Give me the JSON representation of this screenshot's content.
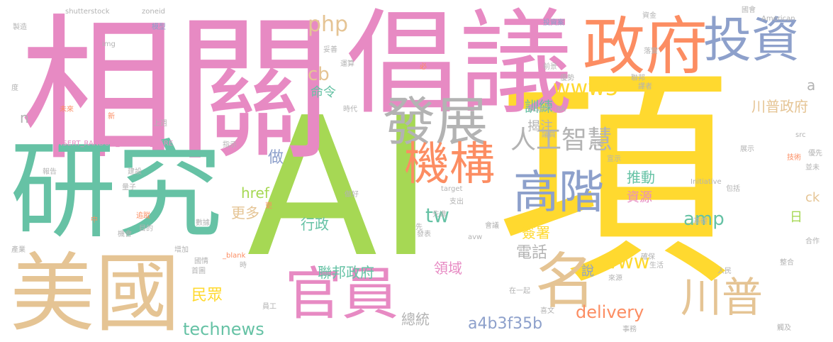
{
  "words": [
    {
      "text": "AI",
      "color": "#a6d854"
    },
    {
      "text": "項",
      "color": "#ffd92f"
    },
    {
      "text": "相關",
      "color": "#e78ac3"
    },
    {
      "text": "倡議",
      "color": "#e78ac3"
    },
    {
      "text": "研究",
      "color": "#66c2a5"
    },
    {
      "text": "美國",
      "color": "#e5c494"
    },
    {
      "text": "政府",
      "color": "#fc8d62"
    },
    {
      "text": "投資",
      "color": "#8da0cb"
    },
    {
      "text": "發展",
      "color": "#b3b3b3"
    },
    {
      "text": "機構",
      "color": "#fc8d62"
    },
    {
      "text": "官員",
      "color": "#e78ac3"
    },
    {
      "text": "高階",
      "color": "#8da0cb"
    },
    {
      "text": "名",
      "color": "#e5c494"
    },
    {
      "text": "川普",
      "color": "#e5c494"
    },
    {
      "text": "人工智慧",
      "color": "#b3b3b3"
    },
    {
      "text": "www5",
      "color": "#ffd92f"
    },
    {
      "text": "php",
      "color": "#e5c494"
    },
    {
      "text": "cb",
      "color": "#e5c494"
    },
    {
      "text": "tw",
      "color": "#66c2a5"
    },
    {
      "text": "amp",
      "color": "#66c2a5"
    },
    {
      "text": "www",
      "color": "#ffd92f"
    },
    {
      "text": "delivery",
      "color": "#fc8d62"
    },
    {
      "text": "technews",
      "color": "#66c2a5"
    },
    {
      "text": "a4b3f35b",
      "color": "#8da0cb"
    },
    {
      "text": "href",
      "color": "#a6d854"
    },
    {
      "text": "更多",
      "color": "#e5c494"
    },
    {
      "text": "民眾",
      "color": "#ffd92f"
    },
    {
      "text": "做",
      "color": "#8da0cb"
    },
    {
      "text": "命令",
      "color": "#66c2a5"
    },
    {
      "text": "訓練",
      "color": "#66c2a5"
    },
    {
      "text": "揭注",
      "color": "#b3b3b3"
    },
    {
      "text": "推動",
      "color": "#66c2a5"
    },
    {
      "text": "資源",
      "color": "#e78ac3"
    },
    {
      "text": "行政",
      "color": "#66c2a5"
    },
    {
      "text": "簽署",
      "color": "#ffd92f"
    },
    {
      "text": "電話",
      "color": "#b3b3b3"
    },
    {
      "text": "說",
      "color": "#8da0cb"
    },
    {
      "text": "聯邦政府",
      "color": "#66c2a5"
    },
    {
      "text": "領域",
      "color": "#e78ac3"
    },
    {
      "text": "總統",
      "color": "#b3b3b3"
    },
    {
      "text": "川普政府",
      "color": "#e5c494"
    },
    {
      "text": "a",
      "color": "#b3b3b3"
    },
    {
      "text": "ck",
      "color": "#e5c494"
    },
    {
      "text": "日",
      "color": "#a6d854"
    },
    {
      "text": "n",
      "color": "#b3b3b3"
    },
    {
      "text": "shutterstock",
      "color": "#b3b3b3"
    },
    {
      "text": "zoneid",
      "color": "#b3b3b3"
    },
    {
      "text": "img",
      "color": "#b3b3b3"
    },
    {
      "text": "製造",
      "color": "#b3b3b3"
    },
    {
      "text": "模型",
      "color": "#8da0cb"
    },
    {
      "text": "投資案",
      "color": "#8da0cb"
    },
    {
      "text": "資金",
      "color": "#b3b3b3"
    },
    {
      "text": "國會",
      "color": "#b3b3b3"
    },
    {
      "text": "American",
      "color": "#b3b3b3"
    },
    {
      "text": "落實",
      "color": "#b3b3b3"
    },
    {
      "text": "妥善",
      "color": "#b3b3b3"
    },
    {
      "text": "運算",
      "color": "#b3b3b3"
    },
    {
      "text": "必",
      "color": "#fc8d62"
    },
    {
      "text": "前景",
      "color": "#b3b3b3"
    },
    {
      "text": "優勢",
      "color": "#b3b3b3"
    },
    {
      "text": "聯邦",
      "color": "#b3b3b3"
    },
    {
      "text": "譯者",
      "color": "#b3b3b3"
    },
    {
      "text": "度",
      "color": "#b3b3b3"
    },
    {
      "text": "未來",
      "color": "#fc8d62"
    },
    {
      "text": "新",
      "color": "#fc8d62"
    },
    {
      "text": "上週",
      "color": "#b3b3b3"
    },
    {
      "text": "時代",
      "color": "#b3b3b3"
    },
    {
      "text": "INSERT_RA",
      "color": "#b3b3b3"
    },
    {
      "text": "INSERT_RANDOM_NUMBER_HERE",
      "color": "#e78ac3"
    },
    {
      "text": "指示",
      "color": "#b3b3b3"
    },
    {
      "text": "議員",
      "color": "#b3b3b3"
    },
    {
      "text": "試圖",
      "color": "#b3b3b3"
    },
    {
      "text": "src",
      "color": "#b3b3b3"
    },
    {
      "text": "展示",
      "color": "#b3b3b3"
    },
    {
      "text": "報告",
      "color": "#b3b3b3"
    },
    {
      "text": "建設",
      "color": "#b3b3b3"
    },
    {
      "text": "宣示",
      "color": "#b3b3b3"
    },
    {
      "text": "target",
      "color": "#b3b3b3"
    },
    {
      "text": "Initiative",
      "color": "#b3b3b3"
    },
    {
      "text": "包括",
      "color": "#b3b3b3"
    },
    {
      "text": "技術",
      "color": "#fc8d62"
    },
    {
      "text": "優先",
      "color": "#b3b3b3"
    },
    {
      "text": "並未",
      "color": "#b3b3b3"
    },
    {
      "text": "量子",
      "color": "#b3b3b3"
    },
    {
      "text": "做好",
      "color": "#b3b3b3"
    },
    {
      "text": "支出",
      "color": "#b3b3b3"
    },
    {
      "text": "中",
      "color": "#fc8d62"
    },
    {
      "text": "追蹤",
      "color": "#fc8d62"
    },
    {
      "text": "更",
      "color": "#fc8d62"
    },
    {
      "text": "先進",
      "color": "#b3b3b3"
    },
    {
      "text": "先",
      "color": "#b3b3b3"
    },
    {
      "text": "會議",
      "color": "#b3b3b3"
    },
    {
      "text": "avw",
      "color": "#b3b3b3"
    },
    {
      "text": "基礎",
      "color": "#b3b3b3"
    },
    {
      "text": "機會",
      "color": "#b3b3b3"
    },
    {
      "text": "目的",
      "color": "#b3b3b3"
    },
    {
      "text": "數據",
      "color": "#b3b3b3"
    },
    {
      "text": "發表",
      "color": "#b3b3b3"
    },
    {
      "text": "合作",
      "color": "#b3b3b3"
    },
    {
      "text": "產業",
      "color": "#b3b3b3"
    },
    {
      "text": "增加",
      "color": "#b3b3b3"
    },
    {
      "text": "國情",
      "color": "#b3b3b3"
    },
    {
      "text": "_blank",
      "color": "#fc8d62"
    },
    {
      "text": "確保",
      "color": "#b3b3b3"
    },
    {
      "text": "首圖",
      "color": "#b3b3b3"
    },
    {
      "text": "時",
      "color": "#b3b3b3"
    },
    {
      "text": "生活",
      "color": "#b3b3b3"
    },
    {
      "text": "人民",
      "color": "#b3b3b3"
    },
    {
      "text": "整合",
      "color": "#b3b3b3"
    },
    {
      "text": "在一起",
      "color": "#b3b3b3"
    },
    {
      "text": "來源",
      "color": "#b3b3b3"
    },
    {
      "text": "員工",
      "color": "#b3b3b3"
    },
    {
      "text": "事務",
      "color": "#b3b3b3"
    },
    {
      "text": "喜文",
      "color": "#b3b3b3"
    },
    {
      "text": "觸及",
      "color": "#b3b3b3"
    }
  ]
}
